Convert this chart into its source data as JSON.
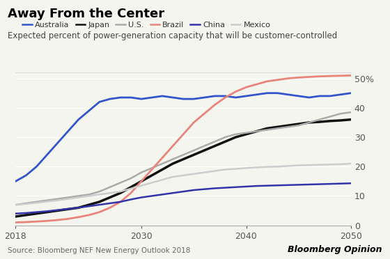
{
  "title": "Away From the Center",
  "subtitle": "Expected percent of power-generation capacity that will be customer-controlled",
  "source": "Source: Bloomberg NEF New Energy Outlook 2018",
  "branding": "Bloomberg Opinion",
  "years": [
    2018,
    2019,
    2020,
    2021,
    2022,
    2023,
    2024,
    2025,
    2026,
    2027,
    2028,
    2029,
    2030,
    2031,
    2032,
    2033,
    2034,
    2035,
    2036,
    2037,
    2038,
    2039,
    2040,
    2041,
    2042,
    2043,
    2044,
    2045,
    2046,
    2047,
    2048,
    2049,
    2050
  ],
  "series": {
    "Australia": {
      "color": "#3355cc",
      "lw": 2.0,
      "values": [
        15,
        17,
        20,
        24,
        28,
        32,
        36,
        39,
        42,
        43,
        43.5,
        43.5,
        43,
        43.5,
        44,
        43.5,
        43,
        43,
        43.5,
        44,
        44,
        43.5,
        44,
        44.5,
        45,
        45,
        44.5,
        44,
        43.5,
        44,
        44,
        44.5,
        45
      ]
    },
    "Japan": {
      "color": "#111111",
      "lw": 2.5,
      "values": [
        3,
        3.5,
        4,
        4.5,
        5,
        5.5,
        6,
        7,
        8,
        9.5,
        11,
        13,
        15,
        17,
        19,
        21,
        22.5,
        24,
        25.5,
        27,
        28.5,
        30,
        31,
        32,
        33,
        33.5,
        34,
        34.5,
        35,
        35.2,
        35.5,
        35.7,
        36
      ]
    },
    "U.S.": {
      "color": "#aaaaaa",
      "lw": 1.8,
      "values": [
        7,
        7.5,
        8,
        8.5,
        9,
        9.5,
        10,
        10.5,
        11.5,
        13,
        14.5,
        16,
        18,
        19.5,
        21,
        22.5,
        24,
        25.5,
        27,
        28.5,
        30,
        31,
        31.5,
        32,
        32.5,
        33,
        33.5,
        34,
        35,
        36,
        37,
        38,
        38.5
      ]
    },
    "Brazil": {
      "color": "#e8847a",
      "lw": 2.0,
      "values": [
        1,
        1.1,
        1.3,
        1.5,
        1.8,
        2.2,
        2.8,
        3.5,
        4.5,
        6,
        8,
        11,
        15,
        19,
        23,
        27,
        31,
        35,
        38,
        41,
        43.5,
        45.5,
        47,
        48,
        49,
        49.5,
        50,
        50.3,
        50.5,
        50.7,
        50.8,
        50.9,
        51
      ]
    },
    "China": {
      "color": "#3333aa",
      "lw": 1.8,
      "values": [
        4,
        4.2,
        4.5,
        4.8,
        5.2,
        5.6,
        6,
        6.5,
        7,
        7.5,
        8,
        8.8,
        9.5,
        10,
        10.5,
        11,
        11.5,
        12,
        12.3,
        12.6,
        12.8,
        13,
        13.2,
        13.4,
        13.5,
        13.6,
        13.7,
        13.8,
        13.9,
        14,
        14.1,
        14.2,
        14.3
      ]
    },
    "Mexico": {
      "color": "#cccccc",
      "lw": 1.8,
      "values": [
        7,
        7.3,
        7.7,
        8.1,
        8.5,
        9,
        9.5,
        10,
        10.5,
        11,
        11.5,
        12.5,
        13.5,
        14.5,
        15.5,
        16.5,
        17,
        17.5,
        18,
        18.5,
        19,
        19.2,
        19.5,
        19.7,
        19.9,
        20,
        20.2,
        20.4,
        20.5,
        20.6,
        20.7,
        20.8,
        21
      ]
    }
  },
  "xlim": [
    2018,
    2050
  ],
  "ylim": [
    0,
    52
  ],
  "yticks": [
    0,
    10,
    20,
    30,
    40,
    50
  ],
  "xticks": [
    2018,
    2030,
    2040,
    2050
  ],
  "bg_color": "#f5f5f0",
  "plot_bg": "#f5f5f0"
}
